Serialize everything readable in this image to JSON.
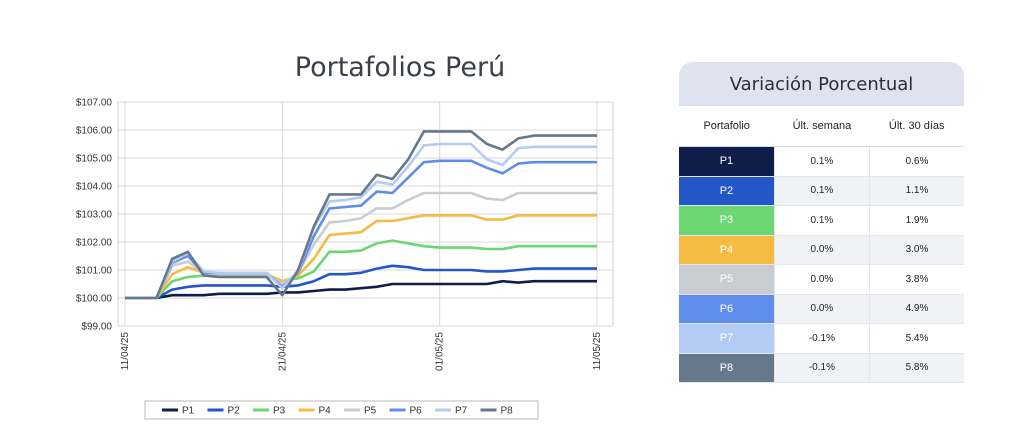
{
  "chart_data": {
    "type": "line",
    "title": "Portafolios Perú",
    "x": [
      "11/04/25",
      "12/04/25",
      "13/04/25",
      "14/04/25",
      "15/04/25",
      "16/04/25",
      "17/04/25",
      "18/04/25",
      "19/04/25",
      "20/04/25",
      "21/04/25",
      "22/04/25",
      "23/04/25",
      "24/04/25",
      "25/04/25",
      "26/04/25",
      "27/04/25",
      "28/04/25",
      "29/04/25",
      "30/04/25",
      "01/05/25",
      "02/05/25",
      "03/05/25",
      "04/05/25",
      "05/05/25",
      "06/05/25",
      "07/05/25",
      "08/05/25",
      "09/05/25",
      "10/05/25",
      "11/05/25"
    ],
    "x_tick_labels": [
      "11/04/25",
      "21/04/25",
      "01/05/25",
      "11/05/25"
    ],
    "y_tick_labels": [
      "$99.00",
      "$100.00",
      "$101.00",
      "$102.00",
      "$103.00",
      "$104.00",
      "$105.00",
      "$106.00",
      "$107.00"
    ],
    "ylim": [
      99,
      107
    ],
    "grid": true,
    "legend_position": "bottom",
    "series": [
      {
        "name": "P1",
        "color": "#0f1d4a",
        "values": [
          100.0,
          100.0,
          100.0,
          100.1,
          100.1,
          100.1,
          100.15,
          100.15,
          100.15,
          100.15,
          100.2,
          100.2,
          100.25,
          100.3,
          100.3,
          100.35,
          100.4,
          100.5,
          100.5,
          100.5,
          100.5,
          100.5,
          100.5,
          100.5,
          100.6,
          100.55,
          100.6,
          100.6,
          100.6,
          100.6,
          100.6
        ]
      },
      {
        "name": "P2",
        "color": "#2356c6",
        "values": [
          100.0,
          100.0,
          100.0,
          100.3,
          100.4,
          100.45,
          100.45,
          100.45,
          100.45,
          100.45,
          100.4,
          100.45,
          100.6,
          100.85,
          100.85,
          100.9,
          101.05,
          101.15,
          101.1,
          101.0,
          101.0,
          101.0,
          101.0,
          100.95,
          100.95,
          101.0,
          101.05,
          101.05,
          101.05,
          101.05,
          101.05
        ]
      },
      {
        "name": "P3",
        "color": "#6bd672",
        "values": [
          100.0,
          100.0,
          100.0,
          100.6,
          100.75,
          100.8,
          100.8,
          100.8,
          100.8,
          100.8,
          100.6,
          100.7,
          100.95,
          101.65,
          101.65,
          101.7,
          101.95,
          102.05,
          101.95,
          101.85,
          101.8,
          101.8,
          101.8,
          101.75,
          101.75,
          101.85,
          101.85,
          101.85,
          101.85,
          101.85,
          101.85
        ]
      },
      {
        "name": "P4",
        "color": "#f5bb42",
        "values": [
          100.0,
          100.0,
          100.0,
          100.85,
          101.1,
          100.9,
          100.85,
          100.85,
          100.85,
          100.85,
          100.6,
          100.8,
          101.4,
          102.25,
          102.3,
          102.35,
          102.75,
          102.75,
          102.85,
          102.95,
          102.95,
          102.95,
          102.95,
          102.8,
          102.8,
          102.95,
          102.95,
          102.95,
          102.95,
          102.95,
          102.95
        ]
      },
      {
        "name": "P5",
        "color": "#c9ccd2",
        "values": [
          100.0,
          100.0,
          100.0,
          101.15,
          101.3,
          100.9,
          100.85,
          100.85,
          100.85,
          100.85,
          100.5,
          100.9,
          101.9,
          102.7,
          102.75,
          102.85,
          103.2,
          103.2,
          103.5,
          103.75,
          103.75,
          103.75,
          103.75,
          103.55,
          103.5,
          103.75,
          103.75,
          103.75,
          103.75,
          103.75,
          103.75
        ]
      },
      {
        "name": "P6",
        "color": "#5f8ded",
        "values": [
          100.0,
          100.0,
          100.0,
          101.25,
          101.5,
          100.9,
          100.9,
          100.9,
          100.9,
          100.9,
          100.4,
          100.9,
          102.2,
          103.2,
          103.25,
          103.3,
          103.8,
          103.75,
          104.3,
          104.85,
          104.9,
          104.9,
          104.9,
          104.65,
          104.45,
          104.8,
          104.85,
          104.85,
          104.85,
          104.85,
          104.85
        ]
      },
      {
        "name": "P7",
        "color": "#b4cbf5",
        "values": [
          100.0,
          100.0,
          100.0,
          101.3,
          101.6,
          100.95,
          100.9,
          100.9,
          100.9,
          100.9,
          100.35,
          100.95,
          102.5,
          103.45,
          103.5,
          103.6,
          104.15,
          104.05,
          104.7,
          105.45,
          105.5,
          105.5,
          105.5,
          104.95,
          104.75,
          105.35,
          105.4,
          105.4,
          105.4,
          105.4,
          105.4
        ]
      },
      {
        "name": "P8",
        "color": "#66798c",
        "values": [
          100.0,
          100.0,
          100.0,
          101.4,
          101.65,
          100.8,
          100.75,
          100.75,
          100.75,
          100.75,
          100.1,
          101.0,
          102.55,
          103.7,
          103.7,
          103.7,
          104.4,
          104.25,
          104.95,
          105.95,
          105.95,
          105.95,
          105.95,
          105.5,
          105.3,
          105.7,
          105.8,
          105.8,
          105.8,
          105.8,
          105.8
        ]
      }
    ]
  },
  "table": {
    "title": "Variación Porcentual",
    "headers": [
      "Portafolio",
      "Últ. semana",
      "Últ. 30 días"
    ],
    "rows": [
      {
        "name": "P1",
        "color": "#0f1d4a",
        "week": "0.1%",
        "month": "0.6%"
      },
      {
        "name": "P2",
        "color": "#2356c6",
        "week": "0.1%",
        "month": "1.1%"
      },
      {
        "name": "P3",
        "color": "#6bd672",
        "week": "0.1%",
        "month": "1.9%"
      },
      {
        "name": "P4",
        "color": "#f5bb42",
        "week": "0.0%",
        "month": "3.0%"
      },
      {
        "name": "P5",
        "color": "#c9ccd2",
        "week": "0.0%",
        "month": "3.8%"
      },
      {
        "name": "P6",
        "color": "#5f8ded",
        "week": "0.0%",
        "month": "4.9%"
      },
      {
        "name": "P7",
        "color": "#b4cbf5",
        "week": "-0.1%",
        "month": "5.4%"
      },
      {
        "name": "P8",
        "color": "#66798c",
        "week": "-0.1%",
        "month": "5.8%"
      }
    ]
  }
}
